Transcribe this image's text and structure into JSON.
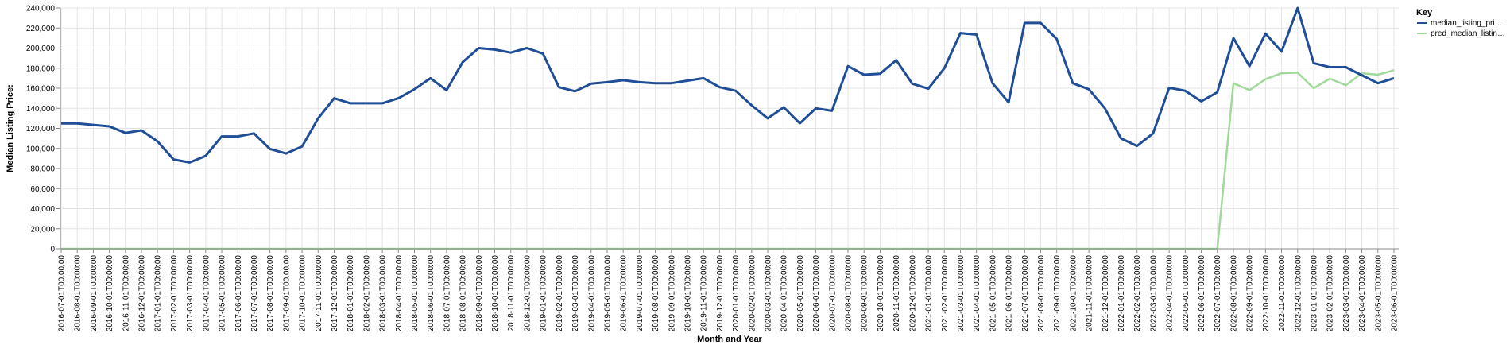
{
  "chart_data": {
    "type": "line",
    "title": "",
    "xlabel": "Month and Year",
    "ylabel": "Median Listing Price:",
    "ylim": [
      0,
      240000
    ],
    "y_ticks": [
      "0",
      "20,000",
      "40,000",
      "60,000",
      "80,000",
      "100,000",
      "120,000",
      "140,000",
      "160,000",
      "180,000",
      "200,000",
      "220,000",
      "240,000"
    ],
    "grid": true,
    "legend": {
      "title": "Key",
      "placement": "top-right"
    },
    "x": [
      "2016-07-01T00:00:00",
      "2016-08-01T00:00:00",
      "2016-09-01T00:00:00",
      "2016-10-01T00:00:00",
      "2016-11-01T00:00:00",
      "2016-12-01T00:00:00",
      "2017-01-01T00:00:00",
      "2017-02-01T00:00:00",
      "2017-03-01T00:00:00",
      "2017-04-01T00:00:00",
      "2017-05-01T00:00:00",
      "2017-06-01T00:00:00",
      "2017-07-01T00:00:00",
      "2017-08-01T00:00:00",
      "2017-09-01T00:00:00",
      "2017-10-01T00:00:00",
      "2017-11-01T00:00:00",
      "2017-12-01T00:00:00",
      "2018-01-01T00:00:00",
      "2018-02-01T00:00:00",
      "2018-03-01T00:00:00",
      "2018-04-01T00:00:00",
      "2018-05-01T00:00:00",
      "2018-06-01T00:00:00",
      "2018-07-01T00:00:00",
      "2018-08-01T00:00:00",
      "2018-09-01T00:00:00",
      "2018-10-01T00:00:00",
      "2018-11-01T00:00:00",
      "2018-12-01T00:00:00",
      "2019-01-01T00:00:00",
      "2019-02-01T00:00:00",
      "2019-03-01T00:00:00",
      "2019-04-01T00:00:00",
      "2019-05-01T00:00:00",
      "2019-06-01T00:00:00",
      "2019-07-01T00:00:00",
      "2019-08-01T00:00:00",
      "2019-09-01T00:00:00",
      "2019-10-01T00:00:00",
      "2019-11-01T00:00:00",
      "2019-12-01T00:00:00",
      "2020-01-01T00:00:00",
      "2020-02-01T00:00:00",
      "2020-03-01T00:00:00",
      "2020-04-01T00:00:00",
      "2020-05-01T00:00:00",
      "2020-06-01T00:00:00",
      "2020-07-01T00:00:00",
      "2020-08-01T00:00:00",
      "2020-09-01T00:00:00",
      "2020-10-01T00:00:00",
      "2020-11-01T00:00:00",
      "2020-12-01T00:00:00",
      "2021-01-01T00:00:00",
      "2021-02-01T00:00:00",
      "2021-03-01T00:00:00",
      "2021-04-01T00:00:00",
      "2021-05-01T00:00:00",
      "2021-06-01T00:00:00",
      "2021-07-01T00:00:00",
      "2021-08-01T00:00:00",
      "2021-09-01T00:00:00",
      "2021-10-01T00:00:00",
      "2021-11-01T00:00:00",
      "2021-12-01T00:00:00",
      "2022-01-01T00:00:00",
      "2022-02-01T00:00:00",
      "2022-03-01T00:00:00",
      "2022-04-01T00:00:00",
      "2022-05-01T00:00:00",
      "2022-06-01T00:00:00",
      "2022-07-01T00:00:00",
      "2022-08-01T00:00:00",
      "2022-09-01T00:00:00",
      "2022-10-01T00:00:00",
      "2022-11-01T00:00:00",
      "2022-12-01T00:00:00",
      "2023-01-01T00:00:00",
      "2023-02-01T00:00:00",
      "2023-03-01T00:00:00",
      "2023-04-01T00:00:00",
      "2023-05-01T00:00:00",
      "2023-06-01T00:00:00"
    ],
    "series": [
      {
        "name": "median_listing_pri…",
        "color": "#1f4e96",
        "values": [
          125000,
          125000,
          123500,
          122000,
          115500,
          118000,
          107000,
          89000,
          86000,
          92500,
          112000,
          112000,
          115000,
          99500,
          95000,
          102000,
          130000,
          150000,
          145000,
          145000,
          145000,
          150000,
          159000,
          170000,
          158000,
          186000,
          200000,
          198500,
          195500,
          200000,
          194500,
          161000,
          157000,
          164500,
          166000,
          168000,
          166000,
          165000,
          165000,
          167500,
          170000,
          161000,
          157500,
          143000,
          130000,
          141000,
          125000,
          140000,
          137500,
          182000,
          173500,
          174500,
          188000,
          164500,
          159500,
          180000,
          215000,
          213500,
          165000,
          146000,
          225000,
          225000,
          209000,
          165000,
          159000,
          140000,
          110000,
          102500,
          115000,
          160500,
          157500,
          147000,
          156000,
          210000,
          182000,
          214500,
          196500,
          240000,
          185000,
          181000,
          181000,
          173000,
          165000,
          170000
        ]
      },
      {
        "name": "pred_median_listin…",
        "color": "#a1d99b",
        "values": [
          0,
          0,
          0,
          0,
          0,
          0,
          0,
          0,
          0,
          0,
          0,
          0,
          0,
          0,
          0,
          0,
          0,
          0,
          0,
          0,
          0,
          0,
          0,
          0,
          0,
          0,
          0,
          0,
          0,
          0,
          0,
          0,
          0,
          0,
          0,
          0,
          0,
          0,
          0,
          0,
          0,
          0,
          0,
          0,
          0,
          0,
          0,
          0,
          0,
          0,
          0,
          0,
          0,
          0,
          0,
          0,
          0,
          0,
          0,
          0,
          0,
          0,
          0,
          0,
          0,
          0,
          0,
          0,
          0,
          0,
          0,
          0,
          0,
          165000,
          158000,
          169000,
          175000,
          175500,
          160000,
          169500,
          163000,
          175000,
          173500,
          178000
        ]
      }
    ]
  }
}
